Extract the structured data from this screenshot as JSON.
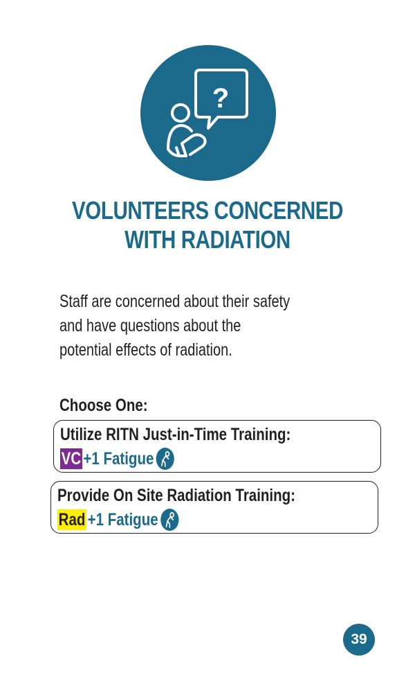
{
  "card": {
    "title_line1": "VOLUNTEERS CONCERNED",
    "title_line2": "WITH RADIATION",
    "description_lines": [
      "Staff are concerned about their safety",
      "and have questions about the",
      "potential effects of radiation."
    ],
    "choose_label": "Choose One:",
    "options": [
      {
        "label": "Utilize RITN Just-in-Time Training:",
        "tag": "VC",
        "effect": "+1 Fatigue",
        "icon": "fatigue-icon"
      },
      {
        "label": "Provide On Site Radiation Training:",
        "tag": "Rad",
        "effect": "+1 Fatigue",
        "icon": "fatigue-icon"
      }
    ],
    "page_number": "39"
  },
  "colors": {
    "primary": "#1b6a8c",
    "vc_tag": "#7e2b91",
    "rad_tag": "#ffee00",
    "text": "#231f20"
  },
  "icons": {
    "hero": "person-question-icon",
    "fatigue": "fatigue-icon"
  }
}
